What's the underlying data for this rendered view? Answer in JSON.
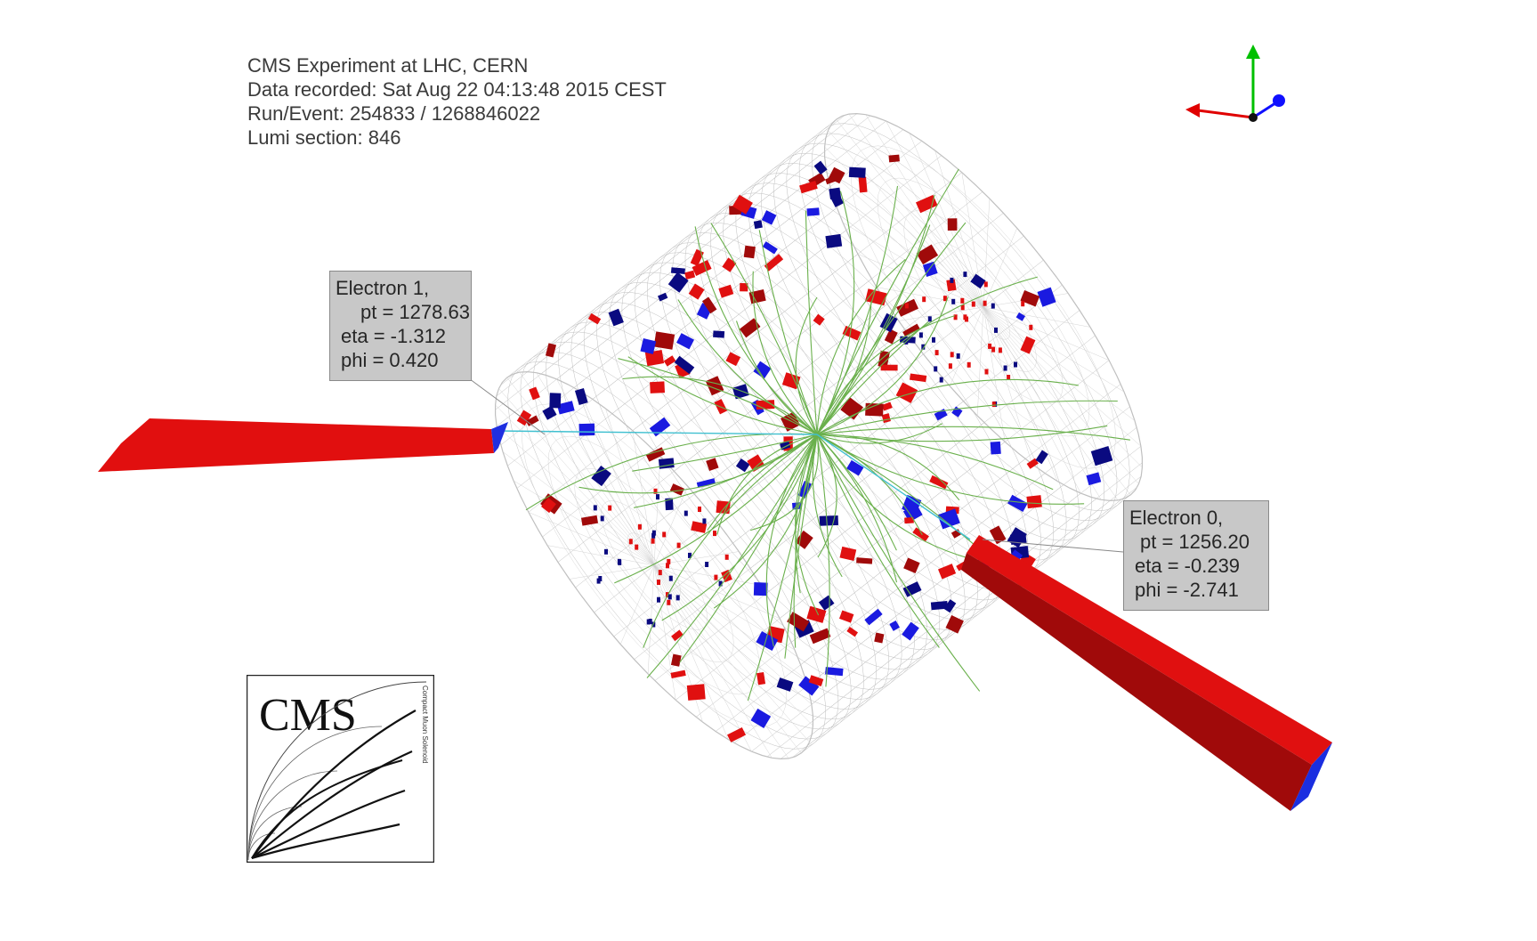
{
  "event_info": {
    "line1": "CMS Experiment at LHC, CERN",
    "line2": "Data recorded: Sat Aug 22 04:13:48 2015 CEST",
    "line3": "Run/Event: 254833 / 1268846022",
    "line4": "Lumi section: 846"
  },
  "electron1": {
    "title": "Electron 1,",
    "pt": "pt = 1278.63",
    "eta": "eta = -1.312",
    "phi": "phi = 0.420"
  },
  "electron0": {
    "title": "Electron 0,",
    "pt": "pt = 1256.20",
    "eta": "eta = -0.239",
    "phi": "phi = -2.741"
  },
  "logo": {
    "text": "CMS",
    "subtitle": "Compact Muon Solenoid"
  },
  "colors": {
    "hcal_red": "#e01010",
    "hcal_dark": "#a00a0a",
    "ecal_blue": "#1a1ae0",
    "navy": "#0a0a80",
    "track": "#6ab04c",
    "electron_track": "#40c0d0",
    "grid": "#c0c0c0"
  },
  "axes": {
    "x_color": "#e00000",
    "y_color": "#00c000",
    "z_color": "#1010ff"
  }
}
